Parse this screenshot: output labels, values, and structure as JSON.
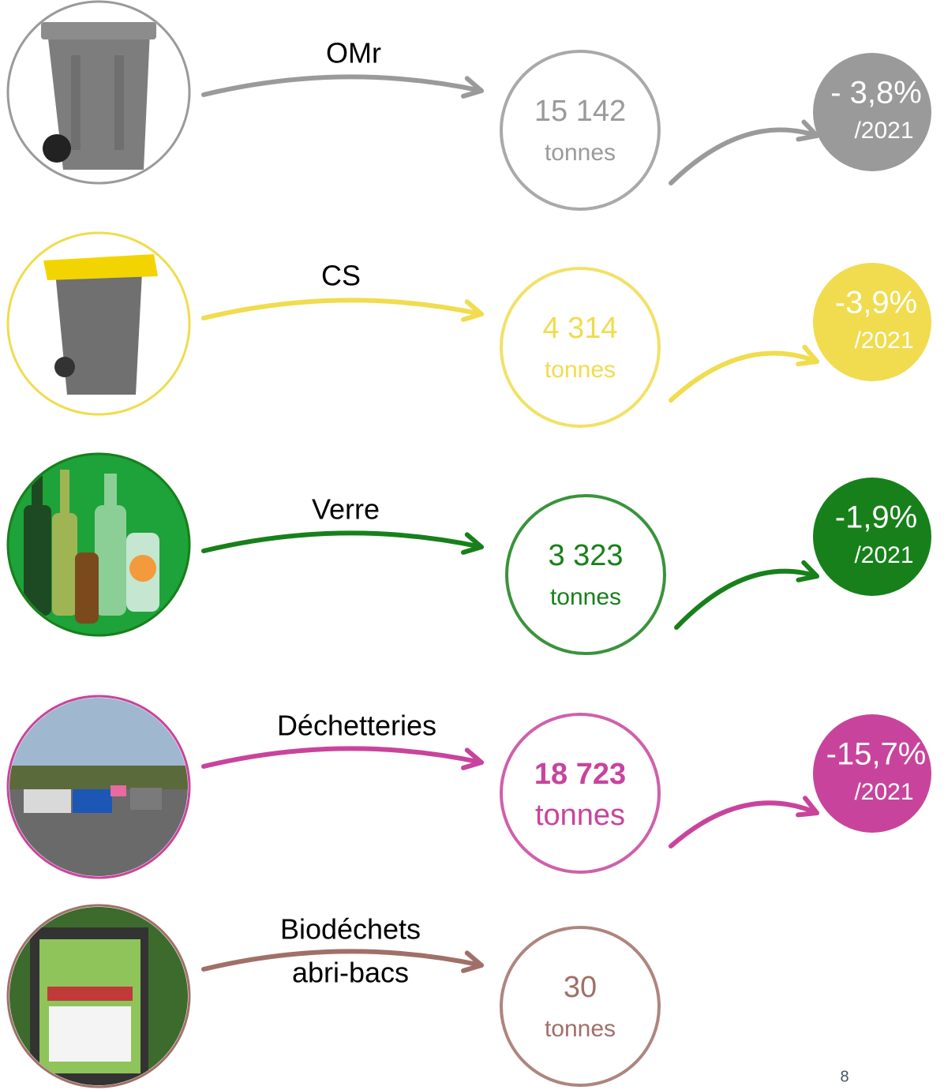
{
  "rows": [
    {
      "label": [
        "OMr"
      ],
      "amount": "15 142",
      "unit": "tonnes",
      "change": "- 3,8%",
      "reference": "/2021",
      "color": "#9a9a9a"
    },
    {
      "label": [
        "CS"
      ],
      "amount": "4 314",
      "unit": "tonnes",
      "change": "-3,9%",
      "reference": "/2021",
      "color": "#f0dc4e"
    },
    {
      "label": [
        "Verre"
      ],
      "amount": "3 323",
      "unit": "tonnes",
      "change": "-1,9%",
      "reference": "/2021",
      "color": "#17801a"
    },
    {
      "label": [
        "Déchetteries"
      ],
      "amount": "18 723",
      "unit": "tonnes",
      "change": "-15,7%",
      "reference": "/2021",
      "color": "#c8449c"
    },
    {
      "label": [
        "Biodéchets",
        "abri-bacs"
      ],
      "amount": "30",
      "unit": "tonnes",
      "color": "#a07068"
    }
  ],
  "page_number": "8"
}
